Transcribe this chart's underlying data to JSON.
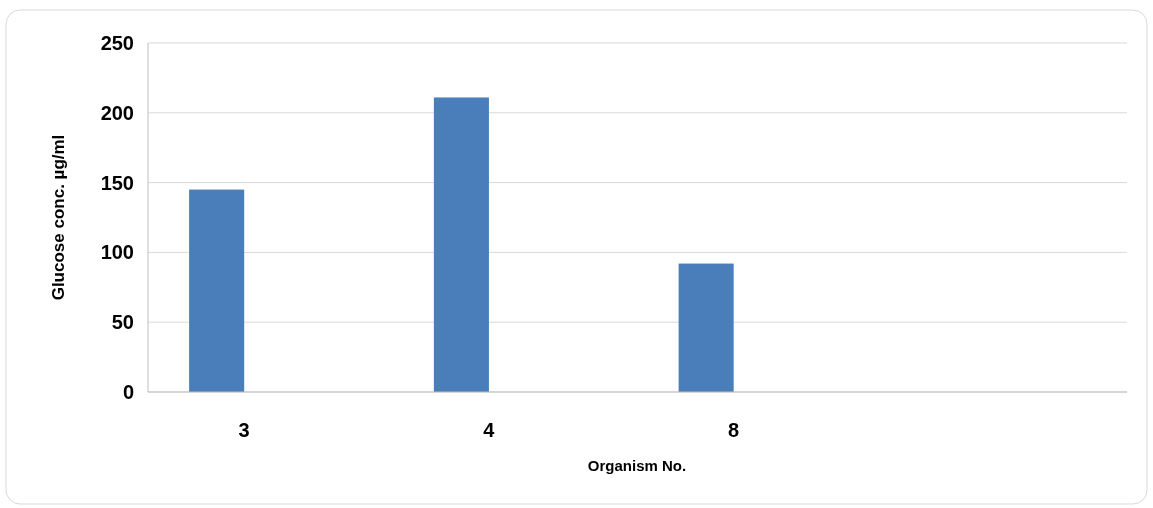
{
  "chart_data": {
    "type": "bar",
    "xlabel": "Organism No.",
    "ylabel": "Glucose conc. µg/ml",
    "categories": [
      "3",
      "4",
      "8",
      null
    ],
    "series": [
      {
        "color": "#4a7ebb",
        "values": [
          145,
          211,
          92,
          null
        ]
      }
    ],
    "ylim": [
      0,
      250
    ],
    "yticks": [
      0,
      50,
      100,
      150,
      200,
      250
    ],
    "grid": "y"
  }
}
